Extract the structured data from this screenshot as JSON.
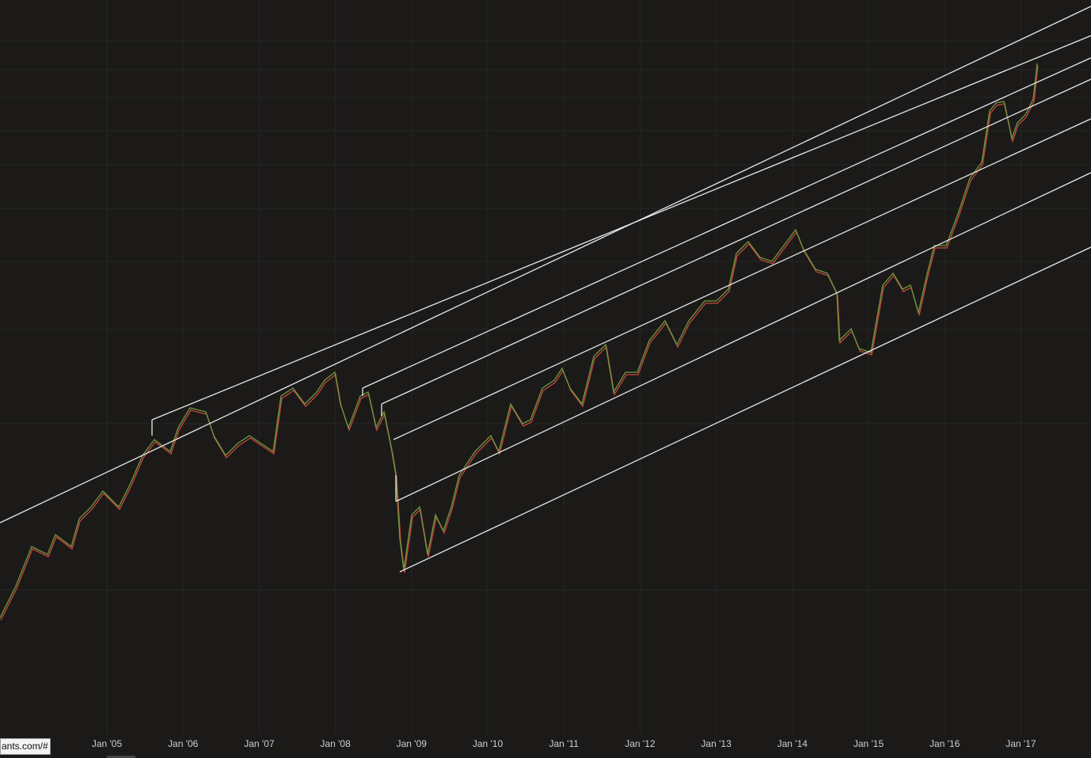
{
  "x_axis": {
    "labels": [
      "Jan '05",
      "Jan '06",
      "Jan '07",
      "Jan '08",
      "Jan '09",
      "Jan '10",
      "Jan '11",
      "Jan '12",
      "Jan '13",
      "Jan '14",
      "Jan '15",
      "Jan '16",
      "Jan '17"
    ]
  },
  "status_bar": {
    "url": "ants.com/#"
  }
}
